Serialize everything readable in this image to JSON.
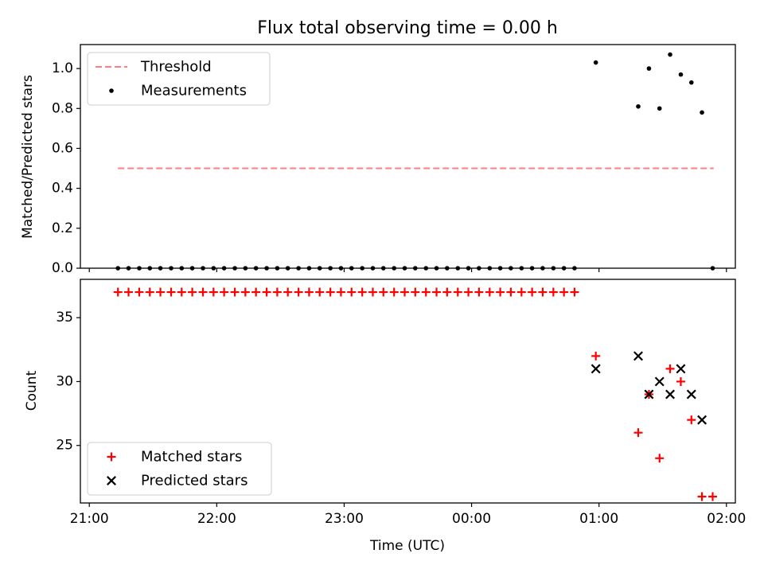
{
  "chart_data": [
    {
      "type": "scatter",
      "title": "Flux total observing time = 0.00 h",
      "xlabel": "",
      "ylabel": "Matched/Predicted stars",
      "xlim": [
        -0.07,
        5.07
      ],
      "ylim": [
        0.0,
        1.12
      ],
      "xticks": [
        0,
        1,
        2,
        3,
        4,
        5
      ],
      "yticks": [
        0.0,
        0.2,
        0.4,
        0.6,
        0.8,
        1.0
      ],
      "ytick_labels": [
        "0.0",
        "0.2",
        "0.4",
        "0.6",
        "0.8",
        "1.0"
      ],
      "grid": false,
      "legend": {
        "position": "upper-left",
        "entries": [
          "Threshold",
          "Measurements"
        ]
      },
      "threshold": {
        "name": "Threshold",
        "value": 0.5,
        "x": [
          0.225,
          4.9
        ],
        "color": "#ff7f7f",
        "style": "dashed"
      },
      "series": [
        {
          "name": "Measurements",
          "color": "#000000",
          "marker": "dot",
          "x": [
            0.225,
            0.308,
            0.392,
            0.475,
            0.558,
            0.642,
            0.725,
            0.808,
            0.892,
            0.975,
            1.058,
            1.142,
            1.225,
            1.308,
            1.392,
            1.475,
            1.558,
            1.642,
            1.725,
            1.808,
            1.892,
            1.975,
            2.058,
            2.142,
            2.225,
            2.308,
            2.392,
            2.475,
            2.558,
            2.642,
            2.725,
            2.808,
            2.892,
            2.975,
            3.058,
            3.142,
            3.225,
            3.308,
            3.392,
            3.475,
            3.558,
            3.642,
            3.725,
            3.808,
            3.975,
            4.308,
            4.392,
            4.475,
            4.558,
            4.642,
            4.725,
            4.808,
            4.892
          ],
          "y": [
            0,
            0,
            0,
            0,
            0,
            0,
            0,
            0,
            0,
            0,
            0,
            0,
            0,
            0,
            0,
            0,
            0,
            0,
            0,
            0,
            0,
            0,
            0,
            0,
            0,
            0,
            0,
            0,
            0,
            0,
            0,
            0,
            0,
            0,
            0,
            0,
            0,
            0,
            0,
            0,
            0,
            0,
            0,
            0,
            1.03,
            0.81,
            1.0,
            0.8,
            1.07,
            0.97,
            0.93,
            0.78,
            0.0
          ]
        }
      ]
    },
    {
      "type": "scatter",
      "title": "",
      "xlabel": "Time (UTC)",
      "ylabel": "Count",
      "xlim": [
        -0.07,
        5.07
      ],
      "ylim": [
        20.5,
        38.0
      ],
      "xticks": [
        0,
        1,
        2,
        3,
        4,
        5
      ],
      "xtick_labels": [
        "21:00",
        "22:00",
        "23:00",
        "00:00",
        "01:00",
        "02:00"
      ],
      "yticks": [
        25,
        30,
        35
      ],
      "ytick_labels": [
        "25",
        "30",
        "35"
      ],
      "grid": false,
      "legend": {
        "position": "lower-left",
        "entries": [
          "Matched stars",
          "Predicted stars"
        ]
      },
      "series": [
        {
          "name": "Matched stars",
          "color": "#ff0000",
          "marker": "plus",
          "x": [
            0.225,
            0.308,
            0.392,
            0.475,
            0.558,
            0.642,
            0.725,
            0.808,
            0.892,
            0.975,
            1.058,
            1.142,
            1.225,
            1.308,
            1.392,
            1.475,
            1.558,
            1.642,
            1.725,
            1.808,
            1.892,
            1.975,
            2.058,
            2.142,
            2.225,
            2.308,
            2.392,
            2.475,
            2.558,
            2.642,
            2.725,
            2.808,
            2.892,
            2.975,
            3.058,
            3.142,
            3.225,
            3.308,
            3.392,
            3.475,
            3.558,
            3.642,
            3.725,
            3.808,
            3.975,
            4.308,
            4.392,
            4.475,
            4.558,
            4.642,
            4.725,
            4.808,
            4.892
          ],
          "y": [
            37,
            37,
            37,
            37,
            37,
            37,
            37,
            37,
            37,
            37,
            37,
            37,
            37,
            37,
            37,
            37,
            37,
            37,
            37,
            37,
            37,
            37,
            37,
            37,
            37,
            37,
            37,
            37,
            37,
            37,
            37,
            37,
            37,
            37,
            37,
            37,
            37,
            37,
            37,
            37,
            37,
            37,
            37,
            37,
            32,
            26,
            29,
            24,
            31,
            30,
            27,
            21,
            21
          ]
        },
        {
          "name": "Predicted stars",
          "color": "#000000",
          "marker": "x",
          "x": [
            3.975,
            4.308,
            4.392,
            4.475,
            4.558,
            4.642,
            4.725,
            4.808
          ],
          "y": [
            31,
            32,
            29,
            30,
            29,
            31,
            29,
            27
          ]
        }
      ]
    }
  ]
}
